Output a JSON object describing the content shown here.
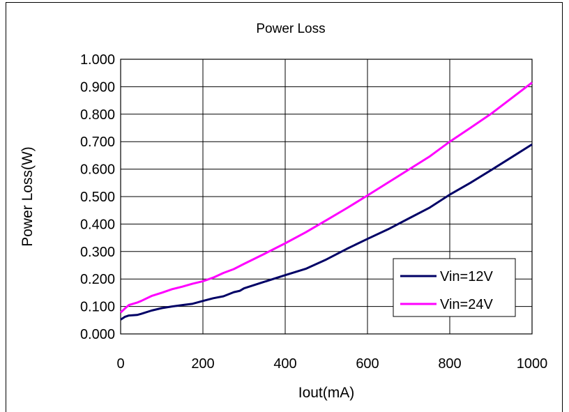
{
  "chart_data": {
    "type": "line",
    "title": "Power Loss",
    "xlabel": "Iout(mA)",
    "ylabel": "Power Loss(W)",
    "xlim": [
      0,
      1000
    ],
    "ylim": [
      0,
      1.0
    ],
    "x_ticks": [
      "0",
      "200",
      "400",
      "600",
      "800",
      "1000"
    ],
    "y_ticks": [
      "0.000",
      "0.100",
      "0.200",
      "0.300",
      "0.400",
      "0.500",
      "0.600",
      "0.700",
      "0.800",
      "0.900",
      "1.000"
    ],
    "grid": true,
    "legend_position": "bottom-right",
    "series": [
      {
        "name": "Vin=12V",
        "color": "#000066",
        "x": [
          0,
          10,
          20,
          40,
          50,
          75,
          100,
          125,
          150,
          175,
          200,
          225,
          250,
          275,
          290,
          300,
          350,
          400,
          450,
          500,
          550,
          600,
          650,
          700,
          750,
          800,
          850,
          900,
          950,
          1000
        ],
        "y": [
          0.052,
          0.062,
          0.067,
          0.069,
          0.073,
          0.085,
          0.094,
          0.1,
          0.105,
          0.11,
          0.12,
          0.13,
          0.137,
          0.152,
          0.157,
          0.166,
          0.19,
          0.214,
          0.237,
          0.271,
          0.31,
          0.346,
          0.381,
          0.42,
          0.459,
          0.507,
          0.55,
          0.596,
          0.643,
          0.69
        ]
      },
      {
        "name": "Vin=24V",
        "color": "#ff00ff",
        "x": [
          0,
          10,
          20,
          40,
          50,
          75,
          100,
          125,
          150,
          175,
          200,
          225,
          250,
          275,
          300,
          350,
          400,
          450,
          500,
          550,
          600,
          650,
          700,
          750,
          800,
          850,
          900,
          950,
          1000
        ],
        "y": [
          0.078,
          0.092,
          0.105,
          0.114,
          0.12,
          0.138,
          0.15,
          0.163,
          0.172,
          0.183,
          0.192,
          0.205,
          0.222,
          0.236,
          0.255,
          0.292,
          0.33,
          0.37,
          0.414,
          0.458,
          0.504,
          0.551,
          0.598,
          0.645,
          0.7,
          0.75,
          0.801,
          0.858,
          0.915
        ]
      }
    ]
  }
}
